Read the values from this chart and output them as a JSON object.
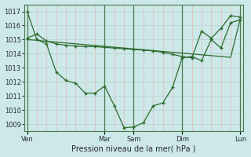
{
  "xlabel": "Pression niveau de la mer( hPa )",
  "bg_color": "#cce8e8",
  "line_color": "#2d6b2d",
  "marker": "+",
  "ylim": [
    1008.5,
    1017.5
  ],
  "yticks": [
    1009,
    1010,
    1011,
    1012,
    1013,
    1014,
    1015,
    1016,
    1017
  ],
  "xtick_labels": [
    "Ven",
    "",
    "",
    "",
    "",
    "",
    "",
    "",
    "Mar",
    "Sam",
    "",
    "",
    "",
    "",
    "",
    "",
    "Dim",
    "",
    "",
    "",
    "",
    "",
    "Lun"
  ],
  "day_positions": [
    0,
    8,
    11,
    16,
    22
  ],
  "day_labels": [
    "Ven",
    "Mar",
    "Sam",
    "Dim",
    "Lun"
  ],
  "xlim": [
    -0.3,
    22.3
  ],
  "line1_x": [
    0,
    1,
    2,
    3,
    4,
    5,
    6,
    7,
    8,
    9,
    10,
    11,
    12,
    13,
    14,
    15,
    16,
    17,
    18,
    19,
    20,
    21,
    22
  ],
  "line1_y": [
    1017.0,
    1015.0,
    1014.7,
    1012.7,
    1012.1,
    1011.9,
    1011.2,
    1011.2,
    1011.7,
    1010.3,
    1008.75,
    1008.8,
    1009.1,
    1010.3,
    1010.5,
    1011.6,
    1013.7,
    1013.8,
    1013.5,
    1015.0,
    1014.4,
    1016.2,
    1016.4
  ],
  "line2_x": [
    0,
    1,
    2,
    3,
    4,
    5,
    6,
    7,
    8,
    9,
    10,
    11,
    12,
    13,
    14,
    15,
    16,
    17,
    18,
    19,
    20,
    21,
    22
  ],
  "line2_y": [
    1015.1,
    1015.4,
    1014.9,
    1014.7,
    1014.6,
    1014.55,
    1014.5,
    1014.5,
    1014.45,
    1014.4,
    1014.35,
    1014.3,
    1014.25,
    1014.2,
    1014.1,
    1013.95,
    1013.8,
    1013.7,
    1015.6,
    1015.1,
    1015.8,
    1016.7,
    1016.6
  ],
  "line3_x": [
    0,
    1,
    2,
    3,
    4,
    5,
    6,
    7,
    8,
    9,
    10,
    11,
    12,
    13,
    14,
    15,
    16,
    17,
    18,
    19,
    20,
    21,
    22
  ],
  "line3_y": [
    1015.0,
    1014.95,
    1014.88,
    1014.82,
    1014.76,
    1014.7,
    1014.64,
    1014.58,
    1014.52,
    1014.46,
    1014.4,
    1014.34,
    1014.28,
    1014.22,
    1014.16,
    1014.1,
    1014.04,
    1013.98,
    1013.92,
    1013.86,
    1013.8,
    1013.74,
    1016.5
  ],
  "grid_h_color": "#b8cece",
  "grid_v_color": "#e8b8b8",
  "vline_color": "#4a7a4a",
  "xlabel_fontsize": 7,
  "tick_fontsize": 6
}
